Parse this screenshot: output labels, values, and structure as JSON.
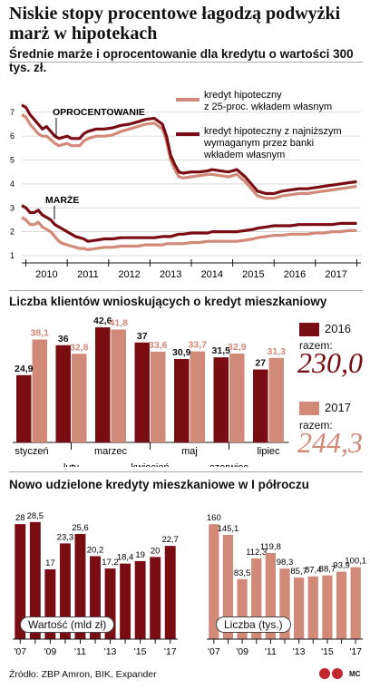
{
  "title": "Niskie stopy procentowe łagodzą podwyżki marż w hipotekach",
  "source": "Źródło: ZBP Amron, BIK, Expander",
  "logo": "MC",
  "colors": {
    "dark": "#7a0c13",
    "light": "#d28a78",
    "text": "#111"
  },
  "chart_data": [
    {
      "type": "line",
      "title": "Średnie marże i oprocentowanie dla kredytu o wartości 300 tys. zł.",
      "legend": [
        "kredyt hipoteczny z 25-proc. wkładem własnym",
        "kredyt hipoteczny z najniższym wymaganym przez banki wkładem własnym"
      ],
      "annotations": [
        "OPROCENTOWANIE",
        "MARŻE"
      ],
      "x_ticks": [
        "2010",
        "2011",
        "2012",
        "2013",
        "2014",
        "2015",
        "2016",
        "2017"
      ],
      "y_ticks": [
        1,
        2,
        3,
        4,
        5,
        6,
        7
      ],
      "ylim": [
        1,
        7.6
      ],
      "x": [
        2009.4,
        2009.5,
        2009.6,
        2009.7,
        2009.8,
        2009.9,
        2010.0,
        2010.1,
        2010.2,
        2010.3,
        2010.4,
        2010.5,
        2010.6,
        2010.7,
        2010.8,
        2010.9,
        2011.0,
        2011.2,
        2011.4,
        2011.6,
        2011.8,
        2012.0,
        2012.2,
        2012.4,
        2012.6,
        2012.8,
        2012.9,
        2013.0,
        2013.1,
        2013.2,
        2013.3,
        2013.5,
        2013.7,
        2013.9,
        2014.0,
        2014.2,
        2014.4,
        2014.6,
        2014.8,
        2015.0,
        2015.1,
        2015.3,
        2015.5,
        2015.7,
        2015.9,
        2016.1,
        2016.3,
        2016.5,
        2016.7,
        2016.9,
        2017.1,
        2017.3,
        2017.5
      ],
      "series": [
        {
          "name": "kredyt hipoteczny z najniższym wymaganym przez banki wkładem własnym",
          "role": "oprocentowanie",
          "values": [
            7.3,
            7.2,
            6.9,
            6.7,
            6.5,
            6.3,
            6.4,
            6.2,
            6.0,
            5.9,
            5.95,
            6.0,
            5.9,
            5.9,
            5.9,
            6.1,
            6.2,
            6.3,
            6.3,
            6.35,
            6.45,
            6.5,
            6.6,
            6.7,
            6.75,
            6.5,
            6.0,
            5.2,
            4.8,
            4.5,
            4.45,
            4.5,
            4.5,
            4.55,
            4.6,
            4.55,
            4.5,
            4.6,
            4.3,
            3.9,
            3.7,
            3.6,
            3.6,
            3.7,
            3.75,
            3.8,
            3.8,
            3.85,
            3.9,
            3.95,
            4.0,
            4.05,
            4.1
          ]
        },
        {
          "name": "kredyt hipoteczny z 25-proc. wkładem własnym",
          "role": "oprocentowanie",
          "values": [
            6.9,
            6.8,
            6.5,
            6.3,
            6.1,
            6.0,
            6.0,
            5.85,
            5.7,
            5.6,
            5.65,
            5.7,
            5.6,
            5.6,
            5.6,
            5.8,
            5.9,
            6.0,
            6.0,
            6.05,
            6.2,
            6.3,
            6.4,
            6.5,
            6.55,
            6.3,
            5.8,
            5.0,
            4.6,
            4.3,
            4.25,
            4.3,
            4.35,
            4.4,
            4.4,
            4.35,
            4.3,
            4.4,
            4.1,
            3.7,
            3.5,
            3.4,
            3.4,
            3.5,
            3.55,
            3.6,
            3.6,
            3.65,
            3.7,
            3.75,
            3.8,
            3.85,
            3.9
          ]
        },
        {
          "name": "kredyt hipoteczny z najniższym wymaganym przez banki wkładem własnym",
          "role": "marże",
          "values": [
            3.1,
            3.0,
            2.8,
            2.8,
            2.9,
            2.7,
            2.6,
            2.5,
            2.3,
            2.2,
            2.1,
            2.0,
            1.9,
            1.8,
            1.75,
            1.7,
            1.6,
            1.65,
            1.7,
            1.7,
            1.75,
            1.75,
            1.75,
            1.75,
            1.75,
            1.8,
            1.8,
            1.8,
            1.85,
            1.9,
            1.9,
            1.95,
            1.95,
            1.95,
            2.0,
            2.0,
            2.0,
            2.0,
            2.05,
            2.1,
            2.15,
            2.2,
            2.25,
            2.25,
            2.25,
            2.3,
            2.3,
            2.3,
            2.3,
            2.3,
            2.35,
            2.35,
            2.35
          ]
        },
        {
          "name": "kredyt hipoteczny z 25-proc. wkładem własnym",
          "role": "marże",
          "values": [
            2.6,
            2.5,
            2.3,
            2.3,
            2.4,
            2.2,
            2.1,
            2.0,
            1.8,
            1.6,
            1.5,
            1.45,
            1.4,
            1.35,
            1.3,
            1.3,
            1.25,
            1.3,
            1.35,
            1.35,
            1.4,
            1.4,
            1.4,
            1.45,
            1.45,
            1.45,
            1.5,
            1.5,
            1.5,
            1.5,
            1.5,
            1.55,
            1.55,
            1.6,
            1.6,
            1.6,
            1.6,
            1.6,
            1.65,
            1.7,
            1.75,
            1.8,
            1.85,
            1.85,
            1.9,
            1.9,
            1.9,
            1.95,
            1.95,
            2.0,
            2.0,
            2.05,
            2.05
          ]
        }
      ]
    },
    {
      "type": "bar",
      "title": "Liczba klientów wnioskujących o kredyt mieszkaniowy",
      "categories": [
        "styczeń",
        "luty",
        "marzec",
        "kwiecień",
        "maj",
        "czerwiec",
        "lipiec"
      ],
      "series": [
        {
          "name": "2016",
          "values": [
            24.9,
            36,
            42.6,
            37,
            30.9,
            31.5,
            27
          ]
        },
        {
          "name": "2017",
          "values": [
            38.1,
            32.8,
            41.8,
            33.6,
            33.7,
            32.9,
            31.3
          ]
        }
      ],
      "value_labels": {
        "2016": [
          "24,9",
          "36",
          "42,6",
          "37",
          "30,9",
          "31,5",
          "27"
        ],
        "2017": [
          "38,1",
          "32,8",
          "41,8",
          "33,6",
          "33,7",
          "32,9",
          "31,3"
        ]
      },
      "ylim": [
        0,
        48
      ],
      "totals": [
        {
          "year": "2016",
          "label": "razem:",
          "value": "230,0"
        },
        {
          "year": "2017",
          "label": "razem:",
          "value": "244,3"
        }
      ]
    },
    {
      "type": "bar",
      "title": "Nowo udzielone kredyty mieszkaniowe w I półroczu",
      "panels": [
        {
          "label": "Wartość (mld zł)",
          "values": [
            28,
            28.5,
            17,
            23.3,
            25.6,
            20.2,
            17.2,
            18.4,
            19,
            20,
            22.7
          ],
          "value_labels": [
            "28",
            "28,5",
            "17",
            "23,3",
            "25,6",
            "20,2",
            "17,2",
            "18,4",
            "19",
            "20",
            "22,7"
          ],
          "ylim": [
            0,
            32
          ],
          "color": "#7a0c13"
        },
        {
          "label": "Liczba (tys.)",
          "values": [
            160,
            145.1,
            83.5,
            112.3,
            119.8,
            98.3,
            85.7,
            87.4,
            88.7,
            93.9,
            100.1
          ],
          "value_labels": [
            "160",
            "145,1",
            "83,5",
            "112,3",
            "119,8",
            "98,3",
            "85,7",
            "87,4",
            "88,7",
            "93,9",
            "100,1"
          ],
          "ylim": [
            0,
            183
          ],
          "color": "#d28a78"
        }
      ],
      "x_ticks": [
        "'07",
        "'09",
        "'11",
        "'13",
        "'15",
        "'17"
      ]
    }
  ]
}
